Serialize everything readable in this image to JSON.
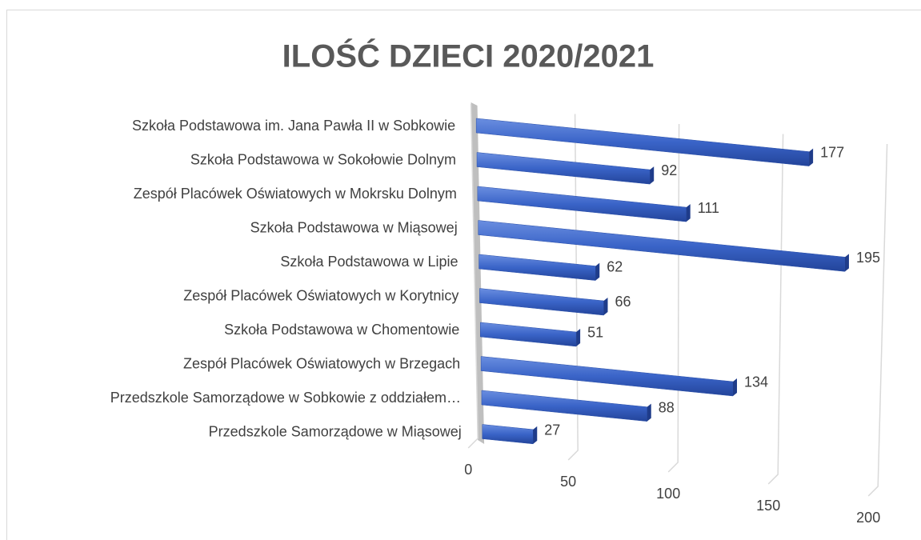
{
  "chart_data": {
    "type": "bar",
    "orientation": "horizontal",
    "title": "ILOŚĆ DZIECI 2020/2021",
    "categories": [
      "Szkoła Podstawowa im. Jana Pawła II w Sobkowie",
      "Szkoła Podstawowa w Sokołowie Dolnym",
      "Zespół Placówek Oświatowych w Mokrsku Dolnym",
      "Szkoła Podstawowa w Miąsowej",
      "Szkoła Podstawowa w Lipie",
      "Zespół Placówek Oświatowych w Korytnicy",
      "Szkoła Podstawowa w Chomentowie",
      "Zespół Placówek Oświatowych w  Brzegach",
      "Przedszkole Samorządowe w Sobkowie z oddziałem…",
      "Przedszkole Samorządowe w Miąsowej"
    ],
    "values": [
      177,
      92,
      111,
      195,
      62,
      66,
      51,
      134,
      88,
      27
    ],
    "color": "#3a64c8",
    "xlim": [
      0,
      200
    ],
    "xticks": [
      0,
      50,
      100,
      150,
      200
    ],
    "grid": true
  }
}
